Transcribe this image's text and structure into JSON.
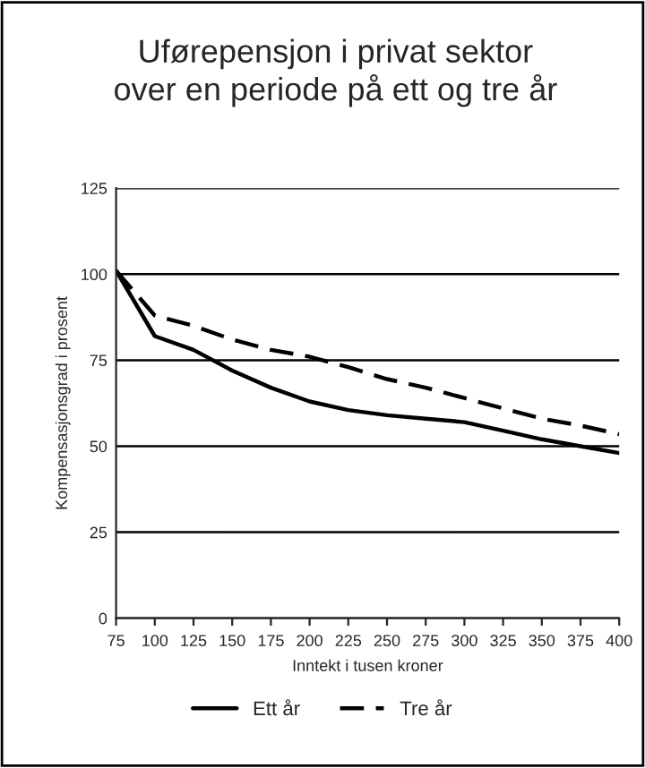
{
  "chart_data": {
    "type": "line",
    "title": "Uførepensjon i privat sektor\nover en periode på ett og tre år",
    "xlabel": "Inntekt i tusen kroner",
    "ylabel": "Kompensasjonsgrad i prosent",
    "x": [
      75,
      100,
      125,
      150,
      175,
      200,
      225,
      250,
      275,
      300,
      325,
      350,
      375,
      400
    ],
    "series": [
      {
        "name": "Ett år",
        "color": "#000000",
        "line_style": "solid",
        "values": [
          101,
          82,
          78,
          72,
          67,
          63,
          60.5,
          59,
          58,
          57,
          54.5,
          52,
          50,
          48
        ]
      },
      {
        "name": "Tre år",
        "color": "#000000",
        "line_style": "dashed",
        "values": [
          101,
          88,
          85,
          81,
          78,
          76,
          73,
          69.5,
          67,
          64,
          61,
          58,
          56,
          53.5
        ]
      }
    ],
    "xlim": [
      75,
      400
    ],
    "xticks": [
      75,
      100,
      125,
      150,
      175,
      200,
      225,
      250,
      275,
      300,
      325,
      350,
      375,
      400
    ],
    "ylim": [
      0,
      125
    ],
    "yticks": [
      0,
      25,
      50,
      75,
      100,
      125
    ],
    "grid": "y",
    "legend": "bottom",
    "marker": "none"
  }
}
